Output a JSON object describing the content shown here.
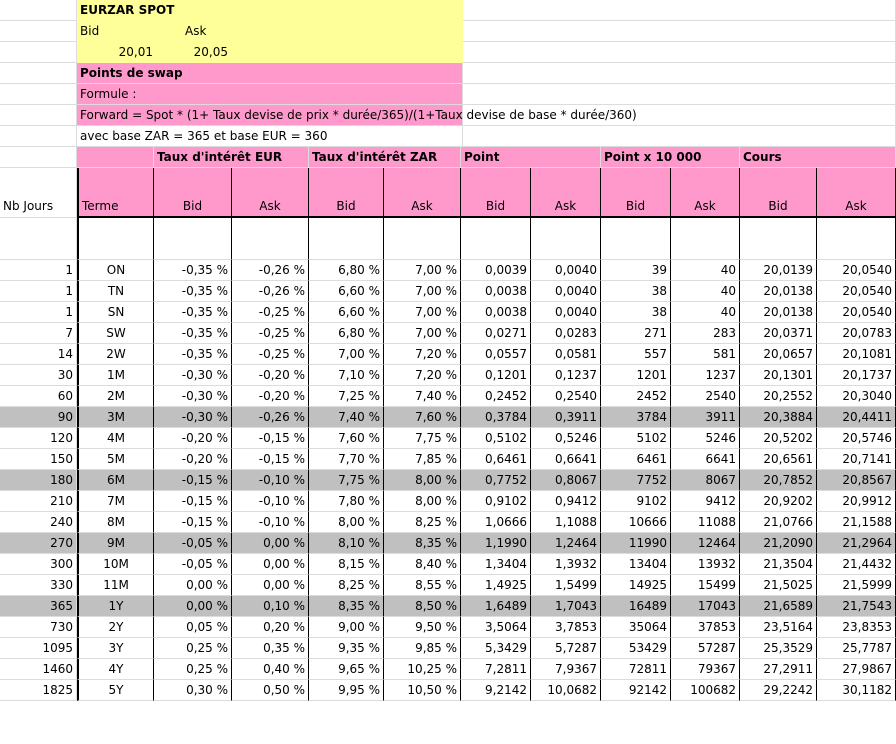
{
  "spot": {
    "title": "EURZAR SPOT",
    "bid_label": "Bid",
    "ask_label": "Ask",
    "bid_value": "20,01",
    "ask_value": "20,05"
  },
  "swap": {
    "title": "Points de swap",
    "formula_label": "Formule :",
    "formula": "Forward = Spot * (1+ Taux devise de prix * durée/365)/(1+Taux devise de base * durée/360)",
    "note": "avec base ZAR = 365 et base EUR = 360"
  },
  "groups": {
    "eur": "Taux d'intérêt EUR",
    "zar": "Taux d'intérêt ZAR",
    "point": "Point",
    "point10000": "Point x 10 000",
    "cours": "Cours"
  },
  "headers": {
    "nb_jours": "Nb Jours",
    "terme": "Terme",
    "bid": "Bid",
    "ask": "Ask"
  },
  "colors": {
    "yellow": "#ffff99",
    "pink": "#ff99cc",
    "highlight_grey": "#c0c0c0"
  },
  "rows": [
    {
      "days": "1",
      "term": "ON",
      "eur_bid": "-0,35 %",
      "eur_ask": "-0,26 %",
      "zar_bid": "6,80 %",
      "zar_ask": "7,00 %",
      "pt_bid": "0,0039",
      "pt_ask": "0,0040",
      "p10_bid": "39",
      "p10_ask": "40",
      "c_bid": "20,0139",
      "c_ask": "20,0540",
      "highlight": false
    },
    {
      "days": "1",
      "term": "TN",
      "eur_bid": "-0,35 %",
      "eur_ask": "-0,26 %",
      "zar_bid": "6,60 %",
      "zar_ask": "7,00 %",
      "pt_bid": "0,0038",
      "pt_ask": "0,0040",
      "p10_bid": "38",
      "p10_ask": "40",
      "c_bid": "20,0138",
      "c_ask": "20,0540",
      "highlight": false
    },
    {
      "days": "1",
      "term": "SN",
      "eur_bid": "-0,35 %",
      "eur_ask": "-0,25 %",
      "zar_bid": "6,60 %",
      "zar_ask": "7,00 %",
      "pt_bid": "0,0038",
      "pt_ask": "0,0040",
      "p10_bid": "38",
      "p10_ask": "40",
      "c_bid": "20,0138",
      "c_ask": "20,0540",
      "highlight": false
    },
    {
      "days": "7",
      "term": "SW",
      "eur_bid": "-0,35 %",
      "eur_ask": "-0,25 %",
      "zar_bid": "6,80 %",
      "zar_ask": "7,00 %",
      "pt_bid": "0,0271",
      "pt_ask": "0,0283",
      "p10_bid": "271",
      "p10_ask": "283",
      "c_bid": "20,0371",
      "c_ask": "20,0783",
      "highlight": false
    },
    {
      "days": "14",
      "term": "2W",
      "eur_bid": "-0,35 %",
      "eur_ask": "-0,25 %",
      "zar_bid": "7,00 %",
      "zar_ask": "7,20 %",
      "pt_bid": "0,0557",
      "pt_ask": "0,0581",
      "p10_bid": "557",
      "p10_ask": "581",
      "c_bid": "20,0657",
      "c_ask": "20,1081",
      "highlight": false
    },
    {
      "days": "30",
      "term": "1M",
      "eur_bid": "-0,30 %",
      "eur_ask": "-0,20 %",
      "zar_bid": "7,10 %",
      "zar_ask": "7,20 %",
      "pt_bid": "0,1201",
      "pt_ask": "0,1237",
      "p10_bid": "1201",
      "p10_ask": "1237",
      "c_bid": "20,1301",
      "c_ask": "20,1737",
      "highlight": false
    },
    {
      "days": "60",
      "term": "2M",
      "eur_bid": "-0,30 %",
      "eur_ask": "-0,20 %",
      "zar_bid": "7,25 %",
      "zar_ask": "7,40 %",
      "pt_bid": "0,2452",
      "pt_ask": "0,2540",
      "p10_bid": "2452",
      "p10_ask": "2540",
      "c_bid": "20,2552",
      "c_ask": "20,3040",
      "highlight": false
    },
    {
      "days": "90",
      "term": "3M",
      "eur_bid": "-0,30 %",
      "eur_ask": "-0,26 %",
      "zar_bid": "7,40 %",
      "zar_ask": "7,60 %",
      "pt_bid": "0,3784",
      "pt_ask": "0,3911",
      "p10_bid": "3784",
      "p10_ask": "3911",
      "c_bid": "20,3884",
      "c_ask": "20,4411",
      "highlight": true
    },
    {
      "days": "120",
      "term": "4M",
      "eur_bid": "-0,20 %",
      "eur_ask": "-0,15 %",
      "zar_bid": "7,60 %",
      "zar_ask": "7,75 %",
      "pt_bid": "0,5102",
      "pt_ask": "0,5246",
      "p10_bid": "5102",
      "p10_ask": "5246",
      "c_bid": "20,5202",
      "c_ask": "20,5746",
      "highlight": false
    },
    {
      "days": "150",
      "term": "5M",
      "eur_bid": "-0,20 %",
      "eur_ask": "-0,15 %",
      "zar_bid": "7,70 %",
      "zar_ask": "7,85 %",
      "pt_bid": "0,6461",
      "pt_ask": "0,6641",
      "p10_bid": "6461",
      "p10_ask": "6641",
      "c_bid": "20,6561",
      "c_ask": "20,7141",
      "highlight": false
    },
    {
      "days": "180",
      "term": "6M",
      "eur_bid": "-0,15 %",
      "eur_ask": "-0,10 %",
      "zar_bid": "7,75 %",
      "zar_ask": "8,00 %",
      "pt_bid": "0,7752",
      "pt_ask": "0,8067",
      "p10_bid": "7752",
      "p10_ask": "8067",
      "c_bid": "20,7852",
      "c_ask": "20,8567",
      "highlight": true
    },
    {
      "days": "210",
      "term": "7M",
      "eur_bid": "-0,15 %",
      "eur_ask": "-0,10 %",
      "zar_bid": "7,80 %",
      "zar_ask": "8,00 %",
      "pt_bid": "0,9102",
      "pt_ask": "0,9412",
      "p10_bid": "9102",
      "p10_ask": "9412",
      "c_bid": "20,9202",
      "c_ask": "20,9912",
      "highlight": false
    },
    {
      "days": "240",
      "term": "8M",
      "eur_bid": "-0,15 %",
      "eur_ask": "-0,10 %",
      "zar_bid": "8,00 %",
      "zar_ask": "8,25 %",
      "pt_bid": "1,0666",
      "pt_ask": "1,1088",
      "p10_bid": "10666",
      "p10_ask": "11088",
      "c_bid": "21,0766",
      "c_ask": "21,1588",
      "highlight": false
    },
    {
      "days": "270",
      "term": "9M",
      "eur_bid": "-0,05 %",
      "eur_ask": "0,00 %",
      "zar_bid": "8,10 %",
      "zar_ask": "8,35 %",
      "pt_bid": "1,1990",
      "pt_ask": "1,2464",
      "p10_bid": "11990",
      "p10_ask": "12464",
      "c_bid": "21,2090",
      "c_ask": "21,2964",
      "highlight": true
    },
    {
      "days": "300",
      "term": "10M",
      "eur_bid": "-0,05 %",
      "eur_ask": "0,00 %",
      "zar_bid": "8,15 %",
      "zar_ask": "8,40 %",
      "pt_bid": "1,3404",
      "pt_ask": "1,3932",
      "p10_bid": "13404",
      "p10_ask": "13932",
      "c_bid": "21,3504",
      "c_ask": "21,4432",
      "highlight": false
    },
    {
      "days": "330",
      "term": "11M",
      "eur_bid": "0,00 %",
      "eur_ask": "0,00 %",
      "zar_bid": "8,25 %",
      "zar_ask": "8,55 %",
      "pt_bid": "1,4925",
      "pt_ask": "1,5499",
      "p10_bid": "14925",
      "p10_ask": "15499",
      "c_bid": "21,5025",
      "c_ask": "21,5999",
      "highlight": false
    },
    {
      "days": "365",
      "term": "1Y",
      "eur_bid": "0,00 %",
      "eur_ask": "0,10 %",
      "zar_bid": "8,35 %",
      "zar_ask": "8,50 %",
      "pt_bid": "1,6489",
      "pt_ask": "1,7043",
      "p10_bid": "16489",
      "p10_ask": "17043",
      "c_bid": "21,6589",
      "c_ask": "21,7543",
      "highlight": true
    },
    {
      "days": "730",
      "term": "2Y",
      "eur_bid": "0,05 %",
      "eur_ask": "0,20 %",
      "zar_bid": "9,00 %",
      "zar_ask": "9,50 %",
      "pt_bid": "3,5064",
      "pt_ask": "3,7853",
      "p10_bid": "35064",
      "p10_ask": "37853",
      "c_bid": "23,5164",
      "c_ask": "23,8353",
      "highlight": false
    },
    {
      "days": "1095",
      "term": "3Y",
      "eur_bid": "0,25 %",
      "eur_ask": "0,35 %",
      "zar_bid": "9,35 %",
      "zar_ask": "9,85 %",
      "pt_bid": "5,3429",
      "pt_ask": "5,7287",
      "p10_bid": "53429",
      "p10_ask": "57287",
      "c_bid": "25,3529",
      "c_ask": "25,7787",
      "highlight": false
    },
    {
      "days": "1460",
      "term": "4Y",
      "eur_bid": "0,25 %",
      "eur_ask": "0,40 %",
      "zar_bid": "9,65 %",
      "zar_ask": "10,25 %",
      "pt_bid": "7,2811",
      "pt_ask": "7,9367",
      "p10_bid": "72811",
      "p10_ask": "79367",
      "c_bid": "27,2911",
      "c_ask": "27,9867",
      "highlight": false
    },
    {
      "days": "1825",
      "term": "5Y",
      "eur_bid": "0,30 %",
      "eur_ask": "0,50 %",
      "zar_bid": "9,95 %",
      "zar_ask": "10,50 %",
      "pt_bid": "9,2142",
      "pt_ask": "10,0682",
      "p10_bid": "92142",
      "p10_ask": "100682",
      "c_bid": "29,2242",
      "c_ask": "30,1182",
      "highlight": false
    }
  ]
}
